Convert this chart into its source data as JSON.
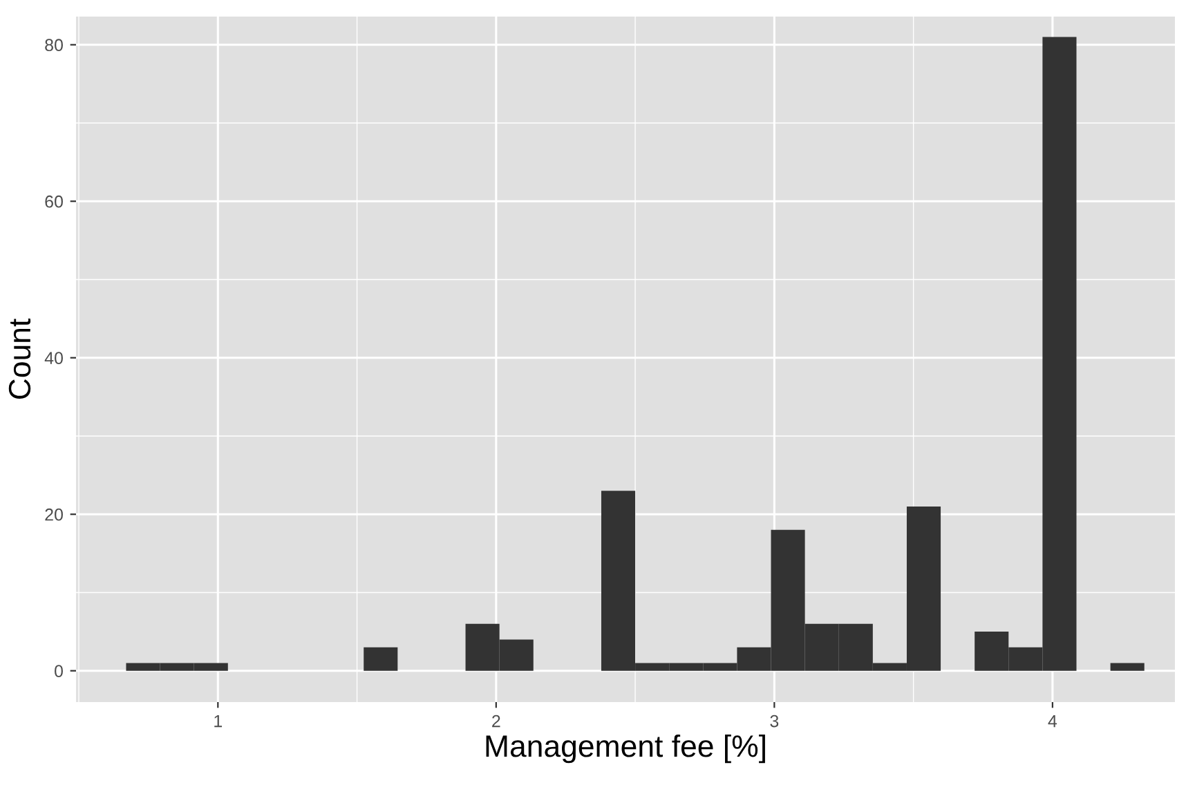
{
  "chart_data": {
    "type": "histogram",
    "xlabel": "Management fee [%]",
    "ylabel": "Count",
    "bins": [
      0.67,
      0.792,
      0.914,
      1.036,
      1.158,
      1.28,
      1.402,
      1.524,
      1.646,
      1.768,
      1.89,
      2.012,
      2.134,
      2.256,
      2.378,
      2.5,
      2.622,
      2.744,
      2.866,
      2.988,
      3.11,
      3.232,
      3.354,
      3.476,
      3.598,
      3.72,
      3.842,
      3.964,
      4.086,
      4.208,
      4.33
    ],
    "values": [
      1,
      1,
      1,
      0,
      0,
      0,
      0,
      3,
      0,
      0,
      6,
      4,
      0,
      0,
      23,
      1,
      1,
      1,
      3,
      18,
      6,
      6,
      1,
      21,
      0,
      5,
      3,
      81,
      0,
      1
    ],
    "color": "#333333",
    "xlim": [
      0.49,
      4.44
    ],
    "xticks": [
      1,
      2,
      3,
      4
    ],
    "ylim": [
      -4,
      83.6
    ],
    "yticks": [
      0,
      20,
      40,
      60,
      80
    ],
    "grid": true
  }
}
